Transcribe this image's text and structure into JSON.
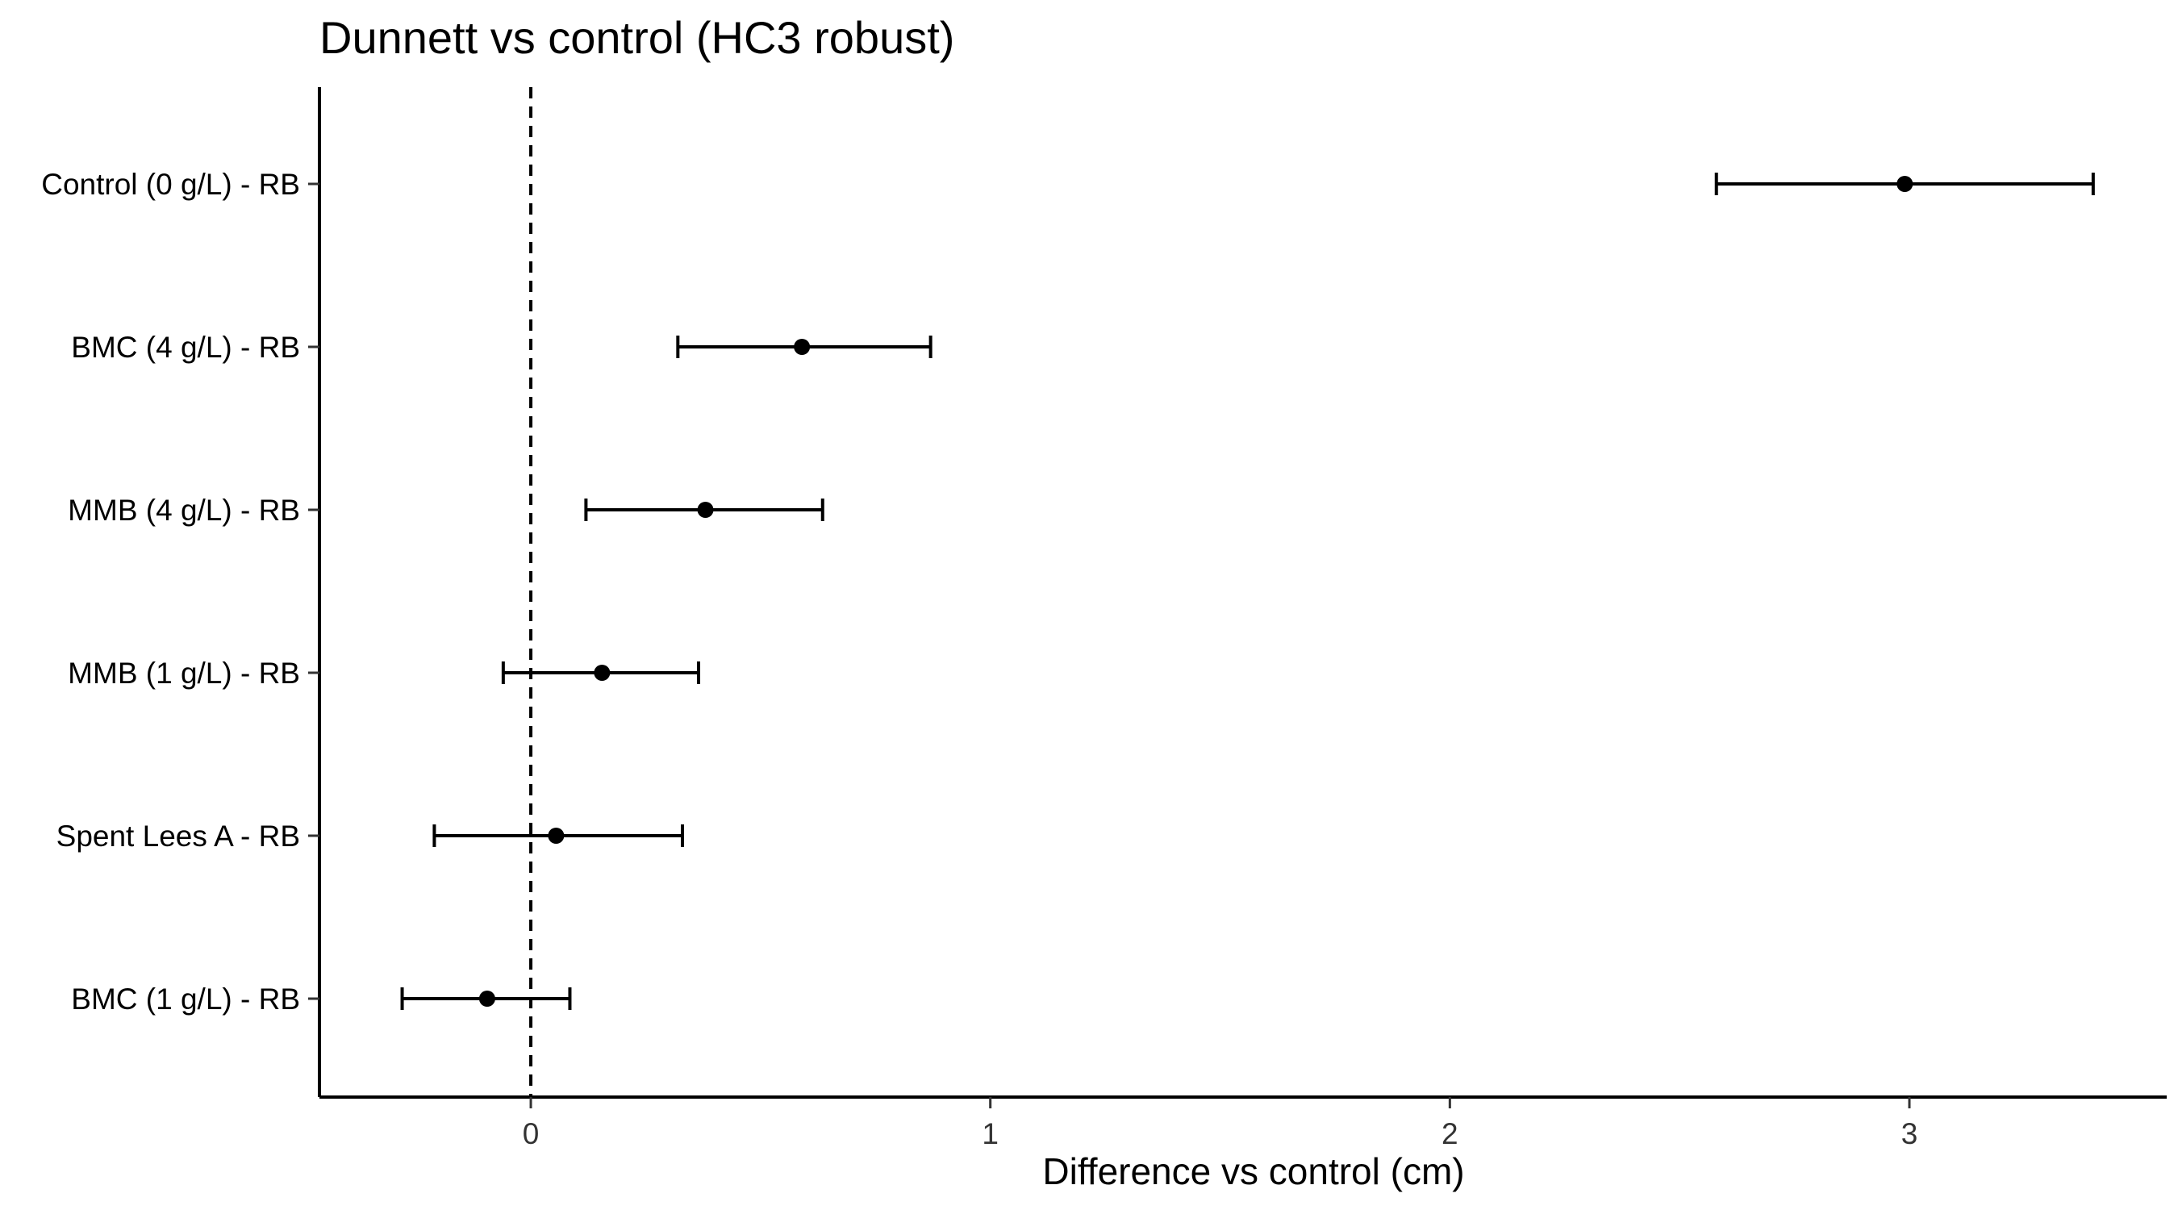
{
  "chart_data": {
    "type": "scatter",
    "title": "Dunnett vs control (HC3 robust)",
    "xlabel": "Difference vs control (cm)",
    "ylabel": "",
    "xlim": [
      -0.46,
      3.56
    ],
    "xticks": [
      0,
      1,
      2,
      3
    ],
    "reference_line": 0,
    "reference_line_style": "dashed",
    "grid": false,
    "categories": [
      "Control (0 g/L) - RB",
      "BMC (4 g/L) - RB",
      "MMB (4 g/L) - RB",
      "MMB (1 g/L) - RB",
      "Spent Lees A - RB",
      "BMC (1 g/L) - RB"
    ],
    "estimates": [
      2.99,
      0.59,
      0.38,
      0.155,
      0.055,
      -0.095
    ],
    "lower": [
      2.58,
      0.32,
      0.12,
      -0.06,
      -0.21,
      -0.28
    ],
    "upper": [
      3.4,
      0.87,
      0.635,
      0.365,
      0.33,
      0.085
    ]
  }
}
